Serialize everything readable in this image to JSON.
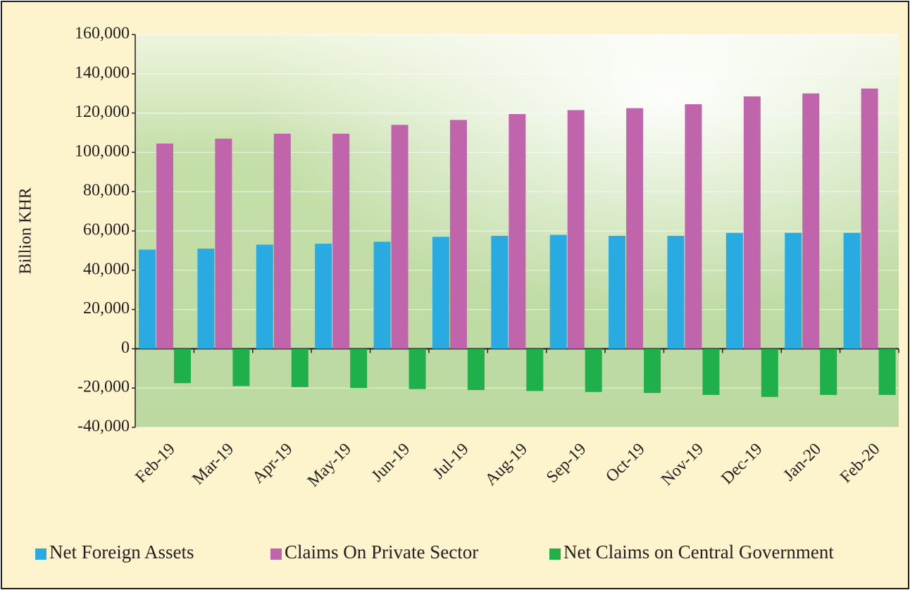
{
  "chart_data": {
    "type": "bar",
    "y_label": "Billion KHR",
    "categories": [
      "Feb-19",
      "Mar-19",
      "Apr-19",
      "May-19",
      "Jun-19",
      "Jul-19",
      "Aug-19",
      "Sep-19",
      "Oct-19",
      "Nov-19",
      "Dec-19",
      "Jan-20",
      "Feb-20"
    ],
    "series": [
      {
        "name": "Net Foreign Assets",
        "color": "#29abe2",
        "values": [
          50500,
          51000,
          53000,
          53500,
          54500,
          57000,
          57500,
          58000,
          57500,
          57500,
          59000,
          59000,
          59000
        ]
      },
      {
        "name": "Claims On Private Sector",
        "color": "#c065ac",
        "values": [
          104500,
          107000,
          109500,
          109500,
          114000,
          116500,
          119500,
          121500,
          122500,
          124500,
          128500,
          130000,
          132500
        ]
      },
      {
        "name": "Net Claims on Central Government",
        "color": "#1fb04b",
        "values": [
          -17500,
          -19000,
          -19500,
          -20000,
          -20500,
          -21000,
          -21500,
          -22000,
          -22500,
          -23500,
          -24500,
          -23500,
          -23500
        ]
      }
    ],
    "ylim": [
      -40000,
      160000
    ],
    "yticks": [
      {
        "value": -40000,
        "label": "-40,000"
      },
      {
        "value": -20000,
        "label": "-20,000"
      },
      0,
      {
        "value": 20000,
        "label": "20,000"
      },
      {
        "value": 40000,
        "label": "40,000"
      },
      {
        "value": 60000,
        "label": "60,000"
      },
      {
        "value": 80000,
        "label": "80,000"
      },
      {
        "value": 100000,
        "label": "100,000"
      },
      {
        "value": 120000,
        "label": "120,000"
      },
      {
        "value": 140000,
        "label": "140,000"
      },
      {
        "value": 160000,
        "label": "160,000"
      }
    ],
    "grid": true,
    "legend": "bottom"
  }
}
